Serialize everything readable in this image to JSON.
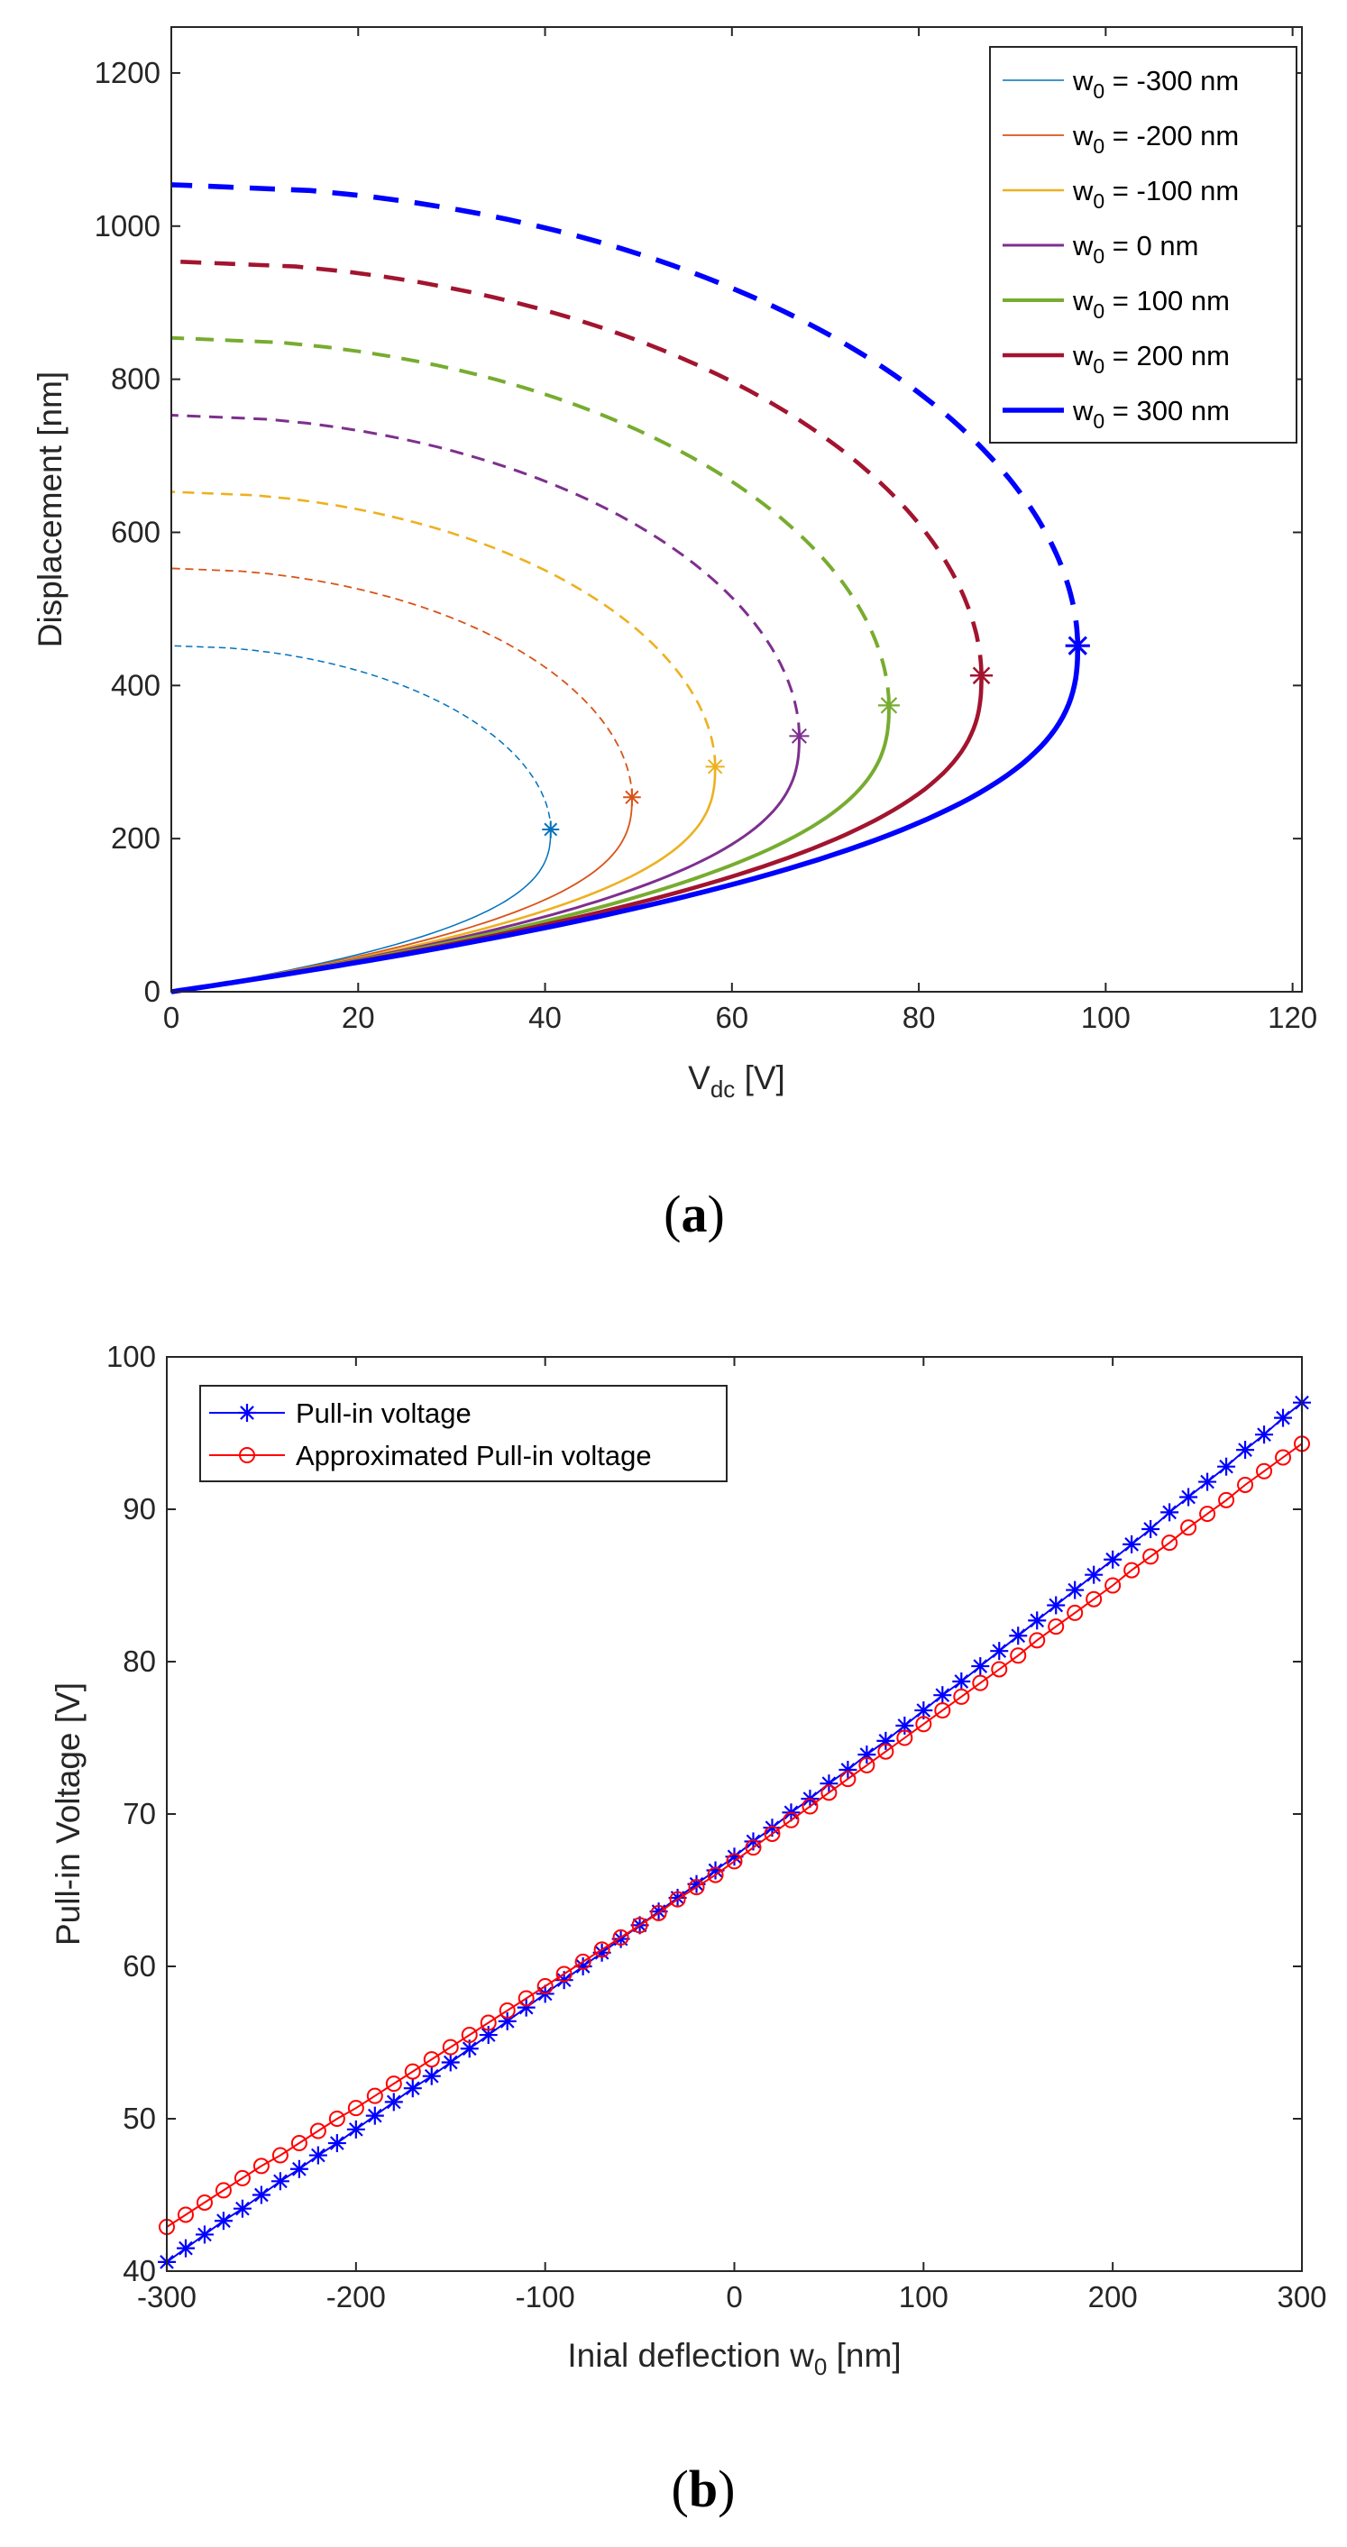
{
  "chart_data": [
    {
      "type": "line",
      "panel_label": "(a)",
      "panel_letter": "a",
      "title": "",
      "xlabel_main": "V",
      "xlabel_sub": "dc",
      "xlabel_unit": " [V]",
      "ylabel": "Displacement [nm]",
      "xlim": [
        0,
        121
      ],
      "ylim": [
        0,
        1260
      ],
      "xticks": [
        0,
        20,
        40,
        60,
        80,
        100,
        120
      ],
      "yticks": [
        0,
        200,
        400,
        600,
        800,
        1000,
        1200
      ],
      "legend_location": "top-right",
      "note": "Solid line = stable branch (0 to pull-in); dashed line = unstable branch (pull-in up to max displacement at V=0); asterisk marks pull-in point",
      "series": [
        {
          "name_pre": "w",
          "name_sub": "0",
          "name_post": " = -300 nm",
          "color": "#0072BD",
          "width": 1.5,
          "pullin_v": 40.6,
          "pullin_disp": 212,
          "max_disp": 452
        },
        {
          "name_pre": "w",
          "name_sub": "0",
          "name_post": " = -200 nm",
          "color": "#D95319",
          "width": 1.8,
          "pullin_v": 49.3,
          "pullin_disp": 254,
          "max_disp": 553
        },
        {
          "name_pre": "w",
          "name_sub": "0",
          "name_post": " = -100 nm",
          "color": "#EDB120",
          "width": 2.6,
          "pullin_v": 58.2,
          "pullin_disp": 294,
          "max_disp": 653
        },
        {
          "name_pre": "w",
          "name_sub": "0",
          "name_post": " = 0 nm",
          "color": "#7E2F8E",
          "width": 3.0,
          "pullin_v": 67.2,
          "pullin_disp": 334,
          "max_disp": 753
        },
        {
          "name_pre": "w",
          "name_sub": "0",
          "name_post": " = 100 nm",
          "color": "#77AC30",
          "width": 4.0,
          "pullin_v": 76.8,
          "pullin_disp": 374,
          "max_disp": 854
        },
        {
          "name_pre": "w",
          "name_sub": "0",
          "name_post": " = 200 nm",
          "color": "#A2142F",
          "width": 4.6,
          "pullin_v": 86.7,
          "pullin_disp": 413,
          "max_disp": 954
        },
        {
          "name_pre": "w",
          "name_sub": "0",
          "name_post": " = 300 nm",
          "color": "#0000FF",
          "width": 5.6,
          "pullin_v": 97.0,
          "pullin_disp": 452,
          "max_disp": 1054
        }
      ]
    },
    {
      "type": "line",
      "panel_label": "(b)",
      "panel_letter": "b",
      "title": "",
      "xlabel_main": "Inial deflection w",
      "xlabel_sub": "0",
      "xlabel_unit": " [nm]",
      "ylabel": "Pull-in Voltage [V]",
      "xlim": [
        -300,
        300
      ],
      "ylim": [
        40,
        100
      ],
      "xticks": [
        -300,
        -200,
        -100,
        0,
        100,
        200,
        300
      ],
      "yticks": [
        40,
        50,
        60,
        70,
        80,
        90,
        100
      ],
      "legend_location": "top-left",
      "x": [
        -300,
        -290,
        -280,
        -270,
        -260,
        -250,
        -240,
        -230,
        -220,
        -210,
        -200,
        -190,
        -180,
        -170,
        -160,
        -150,
        -140,
        -130,
        -120,
        -110,
        -100,
        -90,
        -80,
        -70,
        -60,
        -50,
        -40,
        -30,
        -20,
        -10,
        0,
        10,
        20,
        30,
        40,
        50,
        60,
        70,
        80,
        90,
        100,
        110,
        120,
        130,
        140,
        150,
        160,
        170,
        180,
        190,
        200,
        210,
        220,
        230,
        240,
        250,
        260,
        270,
        280,
        290,
        300
      ],
      "series": [
        {
          "name": "Pull-in voltage",
          "color": "#0000FF",
          "marker": "asterisk",
          "values": [
            40.6,
            41.5,
            42.4,
            43.3,
            44.1,
            45.0,
            45.9,
            46.7,
            47.6,
            48.4,
            49.3,
            50.2,
            51.1,
            52.0,
            52.8,
            53.7,
            54.6,
            55.5,
            56.4,
            57.3,
            58.2,
            59.1,
            60.0,
            60.9,
            61.8,
            62.7,
            63.6,
            64.5,
            65.4,
            66.3,
            67.2,
            68.2,
            69.1,
            70.1,
            71.0,
            72.0,
            72.9,
            73.9,
            74.8,
            75.8,
            76.8,
            77.8,
            78.7,
            79.7,
            80.7,
            81.7,
            82.7,
            83.7,
            84.7,
            85.7,
            86.7,
            87.7,
            88.7,
            89.8,
            90.8,
            91.8,
            92.8,
            93.9,
            94.9,
            96.0,
            97.0
          ]
        },
        {
          "name": "Approximated Pull-in voltage",
          "color": "#FF0000",
          "marker": "circle",
          "values": [
            42.9,
            43.7,
            44.5,
            45.3,
            46.1,
            46.9,
            47.6,
            48.4,
            49.2,
            50.0,
            50.7,
            51.5,
            52.3,
            53.1,
            53.9,
            54.7,
            55.5,
            56.3,
            57.1,
            57.9,
            58.7,
            59.5,
            60.3,
            61.1,
            61.9,
            62.7,
            63.5,
            64.4,
            65.2,
            66.0,
            66.9,
            67.8,
            68.7,
            69.6,
            70.5,
            71.4,
            72.3,
            73.2,
            74.1,
            75.0,
            75.9,
            76.8,
            77.7,
            78.6,
            79.5,
            80.4,
            81.4,
            82.3,
            83.2,
            84.1,
            85.0,
            86.0,
            86.9,
            87.8,
            88.8,
            89.7,
            90.6,
            91.6,
            92.5,
            93.4,
            94.3
          ]
        }
      ]
    }
  ]
}
